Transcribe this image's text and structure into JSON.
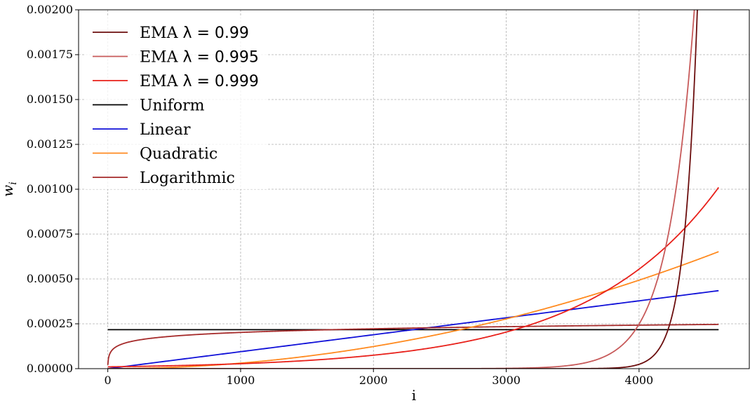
{
  "chart_data": {
    "type": "line",
    "title": "",
    "xlabel": "i",
    "ylabel": "w_i",
    "xlim": [
      -220,
      4830
    ],
    "ylim": [
      0,
      0.002
    ],
    "xticks": [
      0,
      1000,
      2000,
      3000,
      4000
    ],
    "xtick_labels": [
      "0",
      "1000",
      "2000",
      "3000",
      "4000"
    ],
    "yticks": [
      0,
      0.00025,
      0.0005,
      0.00075,
      0.001,
      0.00125,
      0.0015,
      0.00175,
      0.002
    ],
    "ytick_labels": [
      "0.00000",
      "0.00025",
      "0.00050",
      "0.00075",
      "0.00100",
      "0.00125",
      "0.00150",
      "0.00175",
      "0.00200"
    ],
    "grid": true,
    "legend_position": "top-left",
    "n": 4600,
    "series": [
      {
        "name": "EMA λ = 0.99",
        "label_prefix": "EMA ",
        "label_math": "λ = 0.99",
        "color": "#6b0d0d",
        "kind": "ema",
        "lambda": 0.99
      },
      {
        "name": "EMA λ = 0.995",
        "label_prefix": "EMA ",
        "label_math": "λ = 0.995",
        "color": "#c75a5a",
        "kind": "ema",
        "lambda": 0.995
      },
      {
        "name": "EMA λ = 0.999",
        "label_prefix": "EMA ",
        "label_math": "λ = 0.999",
        "color": "#e8201a",
        "kind": "ema",
        "lambda": 0.999
      },
      {
        "name": "Uniform",
        "label_prefix": "Uniform",
        "label_math": "",
        "color": "#000000",
        "kind": "uniform"
      },
      {
        "name": "Linear",
        "label_prefix": "Linear",
        "label_math": "",
        "color": "#1010d8",
        "kind": "linear"
      },
      {
        "name": "Quadratic",
        "label_prefix": "Quadratic",
        "label_math": "",
        "color": "#ff8a1f",
        "kind": "quadratic"
      },
      {
        "name": "Logarithmic",
        "label_prefix": "Logarithmic",
        "label_math": "",
        "color": "#a52a2a",
        "kind": "logarithmic"
      }
    ]
  }
}
